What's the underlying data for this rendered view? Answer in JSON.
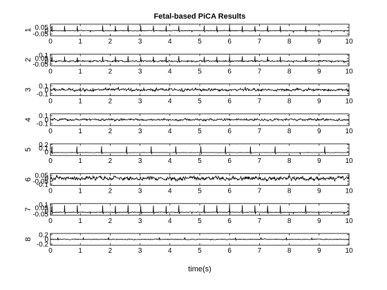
{
  "chart_data": {
    "type": "line",
    "title": "Fetal-based PiCA Results",
    "xlabel": "time(s)",
    "xlim": [
      0,
      10
    ],
    "x_ticks": [
      "0",
      "1",
      "2",
      "3",
      "4",
      "5",
      "6",
      "7",
      "8",
      "9",
      "10"
    ],
    "grid": false,
    "line_color": "#000000",
    "series": [
      {
        "ylabel": "1",
        "ylim": [
          -0.08,
          0.1
        ],
        "y_ticks": [
          {
            "value": 0.05,
            "label": "0.05"
          },
          {
            "value": 0,
            "label": "0"
          },
          {
            "value": -0.05,
            "label": "-0.05"
          }
        ],
        "baseline": 0,
        "noise": 0.008,
        "spike": {
          "height": 0.075,
          "period": 0.425,
          "phase": 0.05
        }
      },
      {
        "ylabel": "2",
        "ylim": [
          -0.08,
          0.12
        ],
        "y_ticks": [
          {
            "value": 0.1,
            "label": "0.1"
          },
          {
            "value": 0.05,
            "label": "0.05"
          },
          {
            "value": 0,
            "label": "0"
          },
          {
            "value": -0.05,
            "label": "-0.05"
          }
        ],
        "baseline": 0,
        "noise": 0.018,
        "spike": {
          "height": 0.08,
          "period": 0.425,
          "phase": 0.05
        }
      },
      {
        "ylabel": "3",
        "ylim": [
          -0.15,
          0.15
        ],
        "y_ticks": [
          {
            "value": 0.1,
            "label": "0.1"
          },
          {
            "value": 0,
            "label": "0"
          },
          {
            "value": -0.1,
            "label": "-0.1"
          }
        ],
        "baseline": 0,
        "noise": 0.045,
        "spike": {
          "height": 0.05,
          "period": 0.425,
          "phase": 0.15
        }
      },
      {
        "ylabel": "4",
        "ylim": [
          -0.15,
          0.15
        ],
        "y_ticks": [
          {
            "value": 0.1,
            "label": "0.1"
          },
          {
            "value": 0,
            "label": "0"
          },
          {
            "value": -0.1,
            "label": "-0.1"
          }
        ],
        "baseline": 0,
        "noise": 0.04,
        "spike": null
      },
      {
        "ylabel": "5",
        "ylim": [
          -0.1,
          0.22
        ],
        "y_ticks": [
          {
            "value": 0.2,
            "label": "0.2"
          },
          {
            "value": 0.1,
            "label": "0.1"
          },
          {
            "value": 0,
            "label": "0"
          }
        ],
        "baseline": -0.02,
        "noise": 0.006,
        "spike": {
          "height": 0.17,
          "period": 0.83,
          "phase": 0.05
        }
      },
      {
        "ylabel": "6",
        "ylim": [
          -0.12,
          0.08
        ],
        "y_ticks": [
          {
            "value": 0.05,
            "label": "0.05"
          },
          {
            "value": 0,
            "label": "0"
          },
          {
            "value": -0.05,
            "label": "-0.05"
          },
          {
            "value": -0.1,
            "label": "-0.1"
          }
        ],
        "baseline": 0,
        "noise": 0.05,
        "spike": null
      },
      {
        "ylabel": "7",
        "ylim": [
          -0.07,
          0.12
        ],
        "y_ticks": [
          {
            "value": 0.1,
            "label": "0.1"
          },
          {
            "value": 0.05,
            "label": "0.05"
          },
          {
            "value": 0,
            "label": "0"
          },
          {
            "value": -0.05,
            "label": "-0.05"
          }
        ],
        "baseline": -0.02,
        "noise": 0.008,
        "spike": {
          "height": 0.11,
          "period": 0.425,
          "phase": 0.05
        }
      },
      {
        "ylabel": "8",
        "ylim": [
          -0.25,
          0.25
        ],
        "y_ticks": [
          {
            "value": 0.2,
            "label": "0.2"
          },
          {
            "value": 0,
            "label": "0"
          },
          {
            "value": -0.2,
            "label": "-0.2"
          }
        ],
        "baseline": 0,
        "noise": 0.025,
        "spike": {
          "height": 0.08,
          "period": 0.85,
          "phase": 0.25
        }
      }
    ]
  }
}
